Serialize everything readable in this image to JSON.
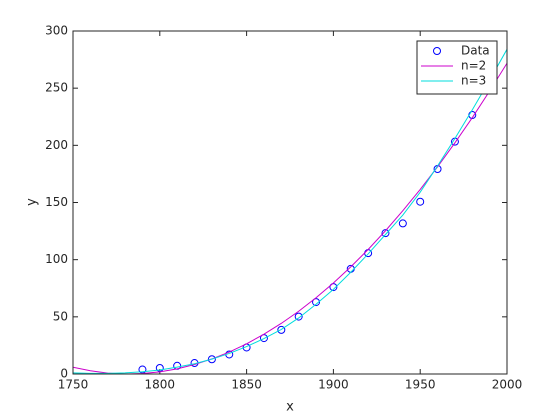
{
  "chart_data": {
    "type": "line",
    "xlabel": "x",
    "ylabel": "y",
    "xlim": [
      1750,
      2000
    ],
    "xticks": [
      1750,
      1800,
      1850,
      1900,
      1950,
      2000
    ],
    "ylim": [
      0,
      300
    ],
    "yticks": [
      0,
      50,
      100,
      150,
      200,
      250,
      300
    ],
    "legend": "northeast",
    "series": [
      {
        "name": "Data",
        "color": "#0000ff",
        "style": "marker",
        "x": [
          1790,
          1800,
          1810,
          1820,
          1830,
          1840,
          1850,
          1860,
          1870,
          1880,
          1890,
          1900,
          1910,
          1920,
          1930,
          1940,
          1950,
          1960,
          1970,
          1980,
          1990
        ],
        "values": [
          3.9,
          5.3,
          7.2,
          9.6,
          12.9,
          17.1,
          23.2,
          31.4,
          38.6,
          50.2,
          62.9,
          76.0,
          92.0,
          105.7,
          123.2,
          131.7,
          150.7,
          179.3,
          203.2,
          226.5,
          248.7
        ]
      },
      {
        "name": "n=2",
        "color": "#cc00cc",
        "style": "line",
        "x": [
          1750,
          1760,
          1770,
          1780,
          1790,
          1800,
          1810,
          1820,
          1830,
          1840,
          1850,
          1860,
          1870,
          1880,
          1890,
          1900,
          1910,
          1920,
          1930,
          1940,
          1950,
          1960,
          1970,
          1980,
          1990,
          2000
        ],
        "values": [
          5.9,
          2.8,
          0.8,
          0,
          0.4,
          1.9,
          4.5,
          8.3,
          13.2,
          19.2,
          26.4,
          34.8,
          44.3,
          54.9,
          66.7,
          79.6,
          93.7,
          108.9,
          125.3,
          142.8,
          161.4,
          181.2,
          202.2,
          224.2,
          247.5,
          271.8
        ]
      },
      {
        "name": "n=3",
        "color": "#00dddd",
        "style": "line",
        "x": [
          1750,
          1760,
          1770,
          1780,
          1790,
          1800,
          1810,
          1820,
          1830,
          1840,
          1850,
          1860,
          1870,
          1880,
          1890,
          1900,
          1910,
          1920,
          1930,
          1940,
          1950,
          1960,
          1970,
          1980,
          1990,
          2000
        ],
        "values": [
          1,
          0.5,
          0.5,
          1,
          2,
          3.5,
          6,
          9,
          13,
          18,
          24,
          31,
          39,
          49,
          61,
          74,
          89,
          105,
          122,
          139,
          159,
          182,
          206,
          231,
          257,
          284
        ]
      }
    ]
  }
}
